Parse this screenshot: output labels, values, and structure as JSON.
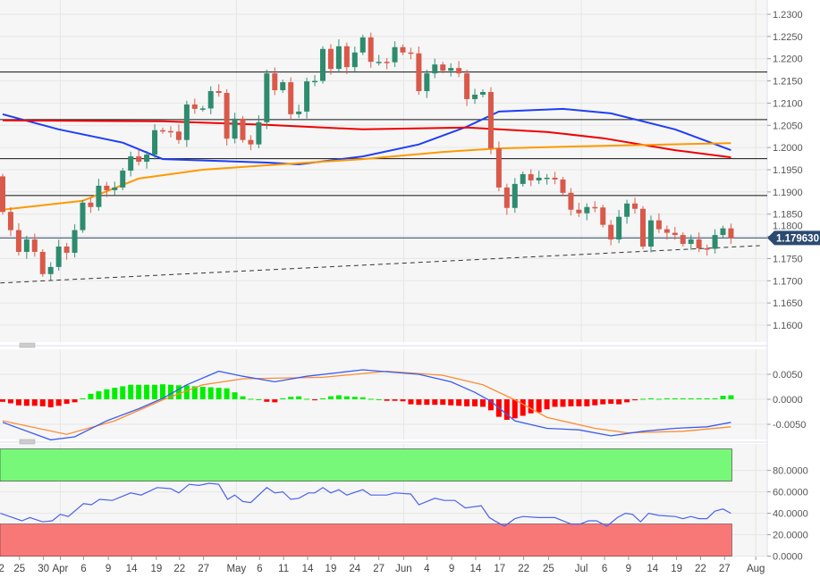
{
  "chart_data": [
    {
      "type": "candlestick",
      "title": "",
      "first_open": 1.1935,
      "closes": [
        1.1855,
        1.1814,
        1.1765,
        1.1793,
        1.1765,
        1.1715,
        1.1731,
        1.1777,
        1.1763,
        1.1814,
        1.1876,
        1.1866,
        1.1914,
        1.1904,
        1.191,
        1.1948,
        1.198,
        1.1968,
        1.1984,
        1.2039,
        1.2037,
        1.2036,
        1.2017,
        1.2097,
        1.2087,
        1.2088,
        1.2127,
        1.2123,
        1.202,
        1.2065,
        1.2017,
        1.2007,
        1.2057,
        1.2167,
        1.2129,
        1.2147,
        1.2075,
        1.2081,
        1.2149,
        1.215,
        1.2222,
        1.2177,
        1.2228,
        1.2181,
        1.2214,
        1.2248,
        1.2193,
        1.2193,
        1.2192,
        1.2226,
        1.2214,
        1.2212,
        1.2127,
        1.2167,
        1.2187,
        1.2173,
        1.2179,
        1.2167,
        1.2109,
        1.2119,
        1.2125,
        1.1998,
        1.191,
        1.1864,
        1.1918,
        1.194,
        1.1926,
        1.1932,
        1.1932,
        1.1928,
        1.1898,
        1.186,
        1.1852,
        1.1866,
        1.1865,
        1.1826,
        1.1793,
        1.1844,
        1.1874,
        1.1862,
        1.1777,
        1.1836,
        1.1816,
        1.1808,
        1.1803,
        1.1783,
        1.1793,
        1.1773,
        1.1772,
        1.1803,
        1.1818,
        1.1796
      ],
      "wick_extent": 0.0012,
      "moving_averages": [
        {
          "name": "ma-blue",
          "color": "#1f3ff5",
          "points": [
            [
              0,
              1.2075
            ],
            [
              7,
              1.2041
            ],
            [
              15,
              1.2011
            ],
            [
              20,
              1.1974
            ],
            [
              33,
              1.1966
            ],
            [
              37,
              1.1962
            ],
            [
              45,
              1.198
            ],
            [
              52,
              1.2007
            ],
            [
              58,
              1.2047
            ],
            [
              62,
              1.2081
            ],
            [
              70,
              1.2087
            ],
            [
              76,
              1.2077
            ],
            [
              84,
              1.2041
            ],
            [
              91,
              1.1994
            ]
          ]
        },
        {
          "name": "ma-red",
          "color": "#f00000",
          "points": [
            [
              0,
              1.2061
            ],
            [
              20,
              1.2059
            ],
            [
              33,
              1.2051
            ],
            [
              45,
              1.2041
            ],
            [
              58,
              1.2045
            ],
            [
              62,
              1.2041
            ],
            [
              68,
              1.2035
            ],
            [
              75,
              1.2021
            ],
            [
              84,
              1.1994
            ],
            [
              91,
              1.1978
            ]
          ]
        },
        {
          "name": "ma-orange",
          "color": "#ff9900",
          "points": [
            [
              0,
              1.186
            ],
            [
              10,
              1.188
            ],
            [
              17,
              1.193
            ],
            [
              25,
              1.195
            ],
            [
              33,
              1.196
            ],
            [
              45,
              1.1974
            ],
            [
              55,
              1.199
            ],
            [
              62,
              1.1998
            ],
            [
              75,
              1.2004
            ],
            [
              91,
              1.201
            ]
          ]
        }
      ],
      "horizontal_levels": [
        1.217,
        1.2063,
        1.1975,
        1.1892
      ],
      "trendline": [
        [
          -0.3,
          1.1695
        ],
        [
          94.6,
          1.1779
        ]
      ],
      "current_price": 1.17963,
      "current_price_label": "1.179630",
      "ylim": [
        1.156,
        1.232
      ],
      "yticks": [
        "1.2300",
        "1.2250",
        "1.2200",
        "1.2150",
        "1.2100",
        "1.2050",
        "1.2000",
        "1.1950",
        "1.1900",
        "1.1850",
        "1.1800",
        "1.1750",
        "1.1700",
        "1.1650",
        "1.1600"
      ],
      "colors": {
        "up": "#2e8b6e",
        "down": "#d9594a"
      }
    },
    {
      "type": "macd",
      "histogram": [
        -0.0005,
        -0.0008,
        -0.0012,
        -0.0013,
        -0.0013,
        -0.0014,
        -0.0016,
        -0.0013,
        -0.0009,
        -0.0006,
        0.0002,
        0.0011,
        0.0016,
        0.002,
        0.0023,
        0.0026,
        0.0029,
        0.0029,
        0.0029,
        0.0029,
        0.003,
        0.0029,
        0.0028,
        0.0028,
        0.0026,
        0.0025,
        0.0024,
        0.0023,
        0.0022,
        0.0014,
        0.0006,
        0.0001,
        0,
        -0.0005,
        -0.0006,
        0.0002,
        0.0005,
        0.0006,
        0.0001,
        -0.0002,
        0.0002,
        0.0006,
        0.0008,
        0.0006,
        0.0005,
        0.0004,
        0.0001,
        0,
        -0.0003,
        -0.0003,
        -0.0004,
        -0.001,
        -0.0011,
        -0.0011,
        -0.0011,
        -0.0011,
        -0.0012,
        -0.0013,
        -0.0014,
        -0.0014,
        -0.0015,
        -0.0022,
        -0.0035,
        -0.0041,
        -0.0038,
        -0.0033,
        -0.0028,
        -0.0026,
        -0.002,
        -0.0015,
        -0.0015,
        -0.0014,
        -0.0014,
        -0.0014,
        -0.0012,
        -0.001,
        -0.0009,
        -0.001,
        -0.0006,
        -0.0002,
        0.0001,
        0.0002,
        0.0001,
        0.0002,
        0.0002,
        0.0002,
        0.0002,
        0.0002,
        0.0002,
        0.0002,
        0.0007,
        0.0008
      ],
      "macd": [
        [
          0,
          -0.0046
        ],
        [
          6,
          -0.0081
        ],
        [
          9,
          -0.0075
        ],
        [
          13,
          -0.0043
        ],
        [
          17,
          -0.0019
        ],
        [
          20,
          0.0002
        ],
        [
          23,
          0.0029
        ],
        [
          27,
          0.0056
        ],
        [
          30,
          0.0046
        ],
        [
          34,
          0.0035
        ],
        [
          38,
          0.0046
        ],
        [
          45,
          0.0059
        ],
        [
          52,
          0.005
        ],
        [
          56,
          0.0035
        ],
        [
          59,
          0.0014
        ],
        [
          61,
          -0.0004
        ],
        [
          64,
          -0.0043
        ],
        [
          68,
          -0.0058
        ],
        [
          72,
          -0.0061
        ],
        [
          76,
          -0.0073
        ],
        [
          80,
          -0.0064
        ],
        [
          84,
          -0.0058
        ],
        [
          88,
          -0.0055
        ],
        [
          91,
          -0.0046
        ]
      ],
      "signal": [
        [
          0,
          -0.0043
        ],
        [
          8,
          -0.007
        ],
        [
          14,
          -0.0043
        ],
        [
          20,
          -0.0001
        ],
        [
          25,
          0.0029
        ],
        [
          30,
          0.0041
        ],
        [
          40,
          0.0044
        ],
        [
          48,
          0.0056
        ],
        [
          55,
          0.0048
        ],
        [
          60,
          0.0029
        ],
        [
          64,
          -0.0001
        ],
        [
          68,
          -0.0036
        ],
        [
          74,
          -0.0058
        ],
        [
          78,
          -0.0067
        ],
        [
          85,
          -0.0064
        ],
        [
          91,
          -0.0055
        ]
      ],
      "yticks": [
        "0.0050",
        "0.0000",
        "-0.0050"
      ],
      "colors": {
        "pos": "#00ee00",
        "neg": "#ff0000",
        "macd": "#3a5cf0",
        "signal": "#ff8c33"
      }
    },
    {
      "type": "line",
      "name": "rsi",
      "points": [
        [
          -0.3,
          40
        ],
        [
          2.4,
          33
        ],
        [
          3.4,
          36
        ],
        [
          5,
          32
        ],
        [
          6.2,
          33
        ],
        [
          7.2,
          39
        ],
        [
          8.2,
          37
        ],
        [
          10.1,
          49
        ],
        [
          11.1,
          48
        ],
        [
          12.1,
          53
        ],
        [
          13.7,
          52
        ],
        [
          16,
          59
        ],
        [
          17.3,
          57
        ],
        [
          19.3,
          64
        ],
        [
          21,
          63
        ],
        [
          22,
          59
        ],
        [
          23.3,
          67
        ],
        [
          24.5,
          66
        ],
        [
          25.8,
          68
        ],
        [
          27,
          67
        ],
        [
          28.1,
          53
        ],
        [
          29,
          57
        ],
        [
          30,
          51
        ],
        [
          31,
          50
        ],
        [
          33,
          64
        ],
        [
          34,
          59
        ],
        [
          35,
          60
        ],
        [
          36,
          53
        ],
        [
          37,
          54
        ],
        [
          38.2,
          59
        ],
        [
          39,
          59
        ],
        [
          40,
          64
        ],
        [
          41,
          59
        ],
        [
          42,
          62
        ],
        [
          43,
          57
        ],
        [
          45,
          62
        ],
        [
          46,
          57
        ],
        [
          48,
          57
        ],
        [
          49,
          59
        ],
        [
          51,
          58
        ],
        [
          52,
          48
        ],
        [
          54,
          54
        ],
        [
          55.2,
          52
        ],
        [
          56.5,
          52
        ],
        [
          57.8,
          45
        ],
        [
          59.8,
          47
        ],
        [
          60.8,
          36
        ],
        [
          61.7,
          32
        ],
        [
          62.7,
          28
        ],
        [
          64,
          35
        ],
        [
          65,
          37
        ],
        [
          67,
          36
        ],
        [
          69,
          36
        ],
        [
          71,
          30
        ],
        [
          72.2,
          30
        ],
        [
          73.2,
          33
        ],
        [
          74.2,
          33
        ],
        [
          75.5,
          28
        ],
        [
          76.8,
          36
        ],
        [
          77.8,
          40
        ],
        [
          78.7,
          39
        ],
        [
          79.7,
          32
        ],
        [
          80.7,
          40
        ],
        [
          82,
          38
        ],
        [
          84,
          37
        ],
        [
          85,
          35
        ],
        [
          86,
          37
        ],
        [
          87,
          35
        ],
        [
          88,
          35
        ],
        [
          89,
          42
        ],
        [
          90,
          44
        ],
        [
          91,
          40
        ]
      ],
      "overbought_zone": [
        70,
        100
      ],
      "oversold_zone": [
        0,
        30
      ],
      "yticks": [
        "80.0000",
        "60.0000",
        "40.0000",
        "20.0000",
        "0.0000"
      ],
      "colors": {
        "line": "#4a63ee",
        "overbought": "#78f878",
        "oversold": "#f87878"
      }
    }
  ],
  "xaxis": {
    "labels": [
      [
        "22",
        -0.5
      ],
      [
        "25",
        2.1
      ],
      [
        "30",
        5.1
      ],
      [
        "Apr",
        7.2
      ],
      [
        "6",
        10.1
      ],
      [
        "9",
        13.2
      ],
      [
        "14",
        16.1
      ],
      [
        "19",
        19.2
      ],
      [
        "22",
        22.1
      ],
      [
        "27",
        25.1
      ],
      [
        "May",
        29.2
      ],
      [
        "6",
        32.1
      ],
      [
        "11",
        35.1
      ],
      [
        "14",
        38.1
      ],
      [
        "19",
        41
      ],
      [
        "24",
        44
      ],
      [
        "27",
        47
      ],
      [
        "Jun",
        50.1
      ],
      [
        "4",
        53
      ],
      [
        "9",
        56.1
      ],
      [
        "14",
        59.1
      ],
      [
        "17",
        62.1
      ],
      [
        "22",
        65.1
      ],
      [
        "25",
        68.2
      ],
      [
        "Jul",
        72.3
      ],
      [
        "6",
        75.2
      ],
      [
        "9",
        78.2
      ],
      [
        "14",
        81.2
      ],
      [
        "19",
        84.2
      ],
      [
        "22",
        87.2
      ],
      [
        "27",
        90.2
      ],
      [
        "Aug",
        94.1
      ]
    ],
    "month_gridlines": [
      7.2,
      29.2,
      50.1,
      72.3,
      94.1
    ]
  }
}
